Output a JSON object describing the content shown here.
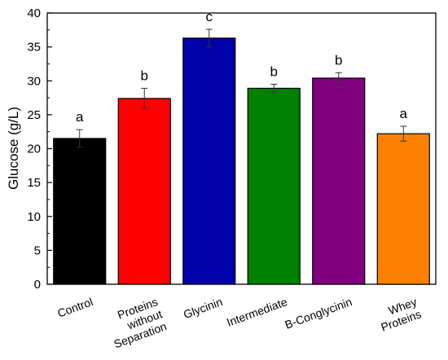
{
  "chart_data": {
    "type": "bar",
    "title": "",
    "xlabel": "",
    "ylabel": "Glucose (g/L)",
    "ylim": [
      0,
      40
    ],
    "yticks": [
      0,
      5,
      10,
      15,
      20,
      25,
      30,
      35,
      40
    ],
    "grid": false,
    "legend": "none",
    "categories": [
      [
        "Control"
      ],
      [
        "Proteins",
        "without",
        "Separation"
      ],
      [
        "Glycinin"
      ],
      [
        "Intermediate"
      ],
      [
        "B-Conglycinin"
      ],
      [
        "Whey",
        "Proteins"
      ]
    ],
    "values": [
      21.5,
      27.4,
      36.3,
      28.9,
      30.4,
      22.2
    ],
    "errors": [
      1.3,
      1.5,
      1.3,
      0.6,
      0.8,
      1.1
    ],
    "significance_letters": [
      "a",
      "b",
      "c",
      "b",
      "b",
      "a"
    ],
    "colors": [
      "#000000",
      "#ff0000",
      "#0000aa",
      "#008000",
      "#800080",
      "#ff8000"
    ]
  }
}
